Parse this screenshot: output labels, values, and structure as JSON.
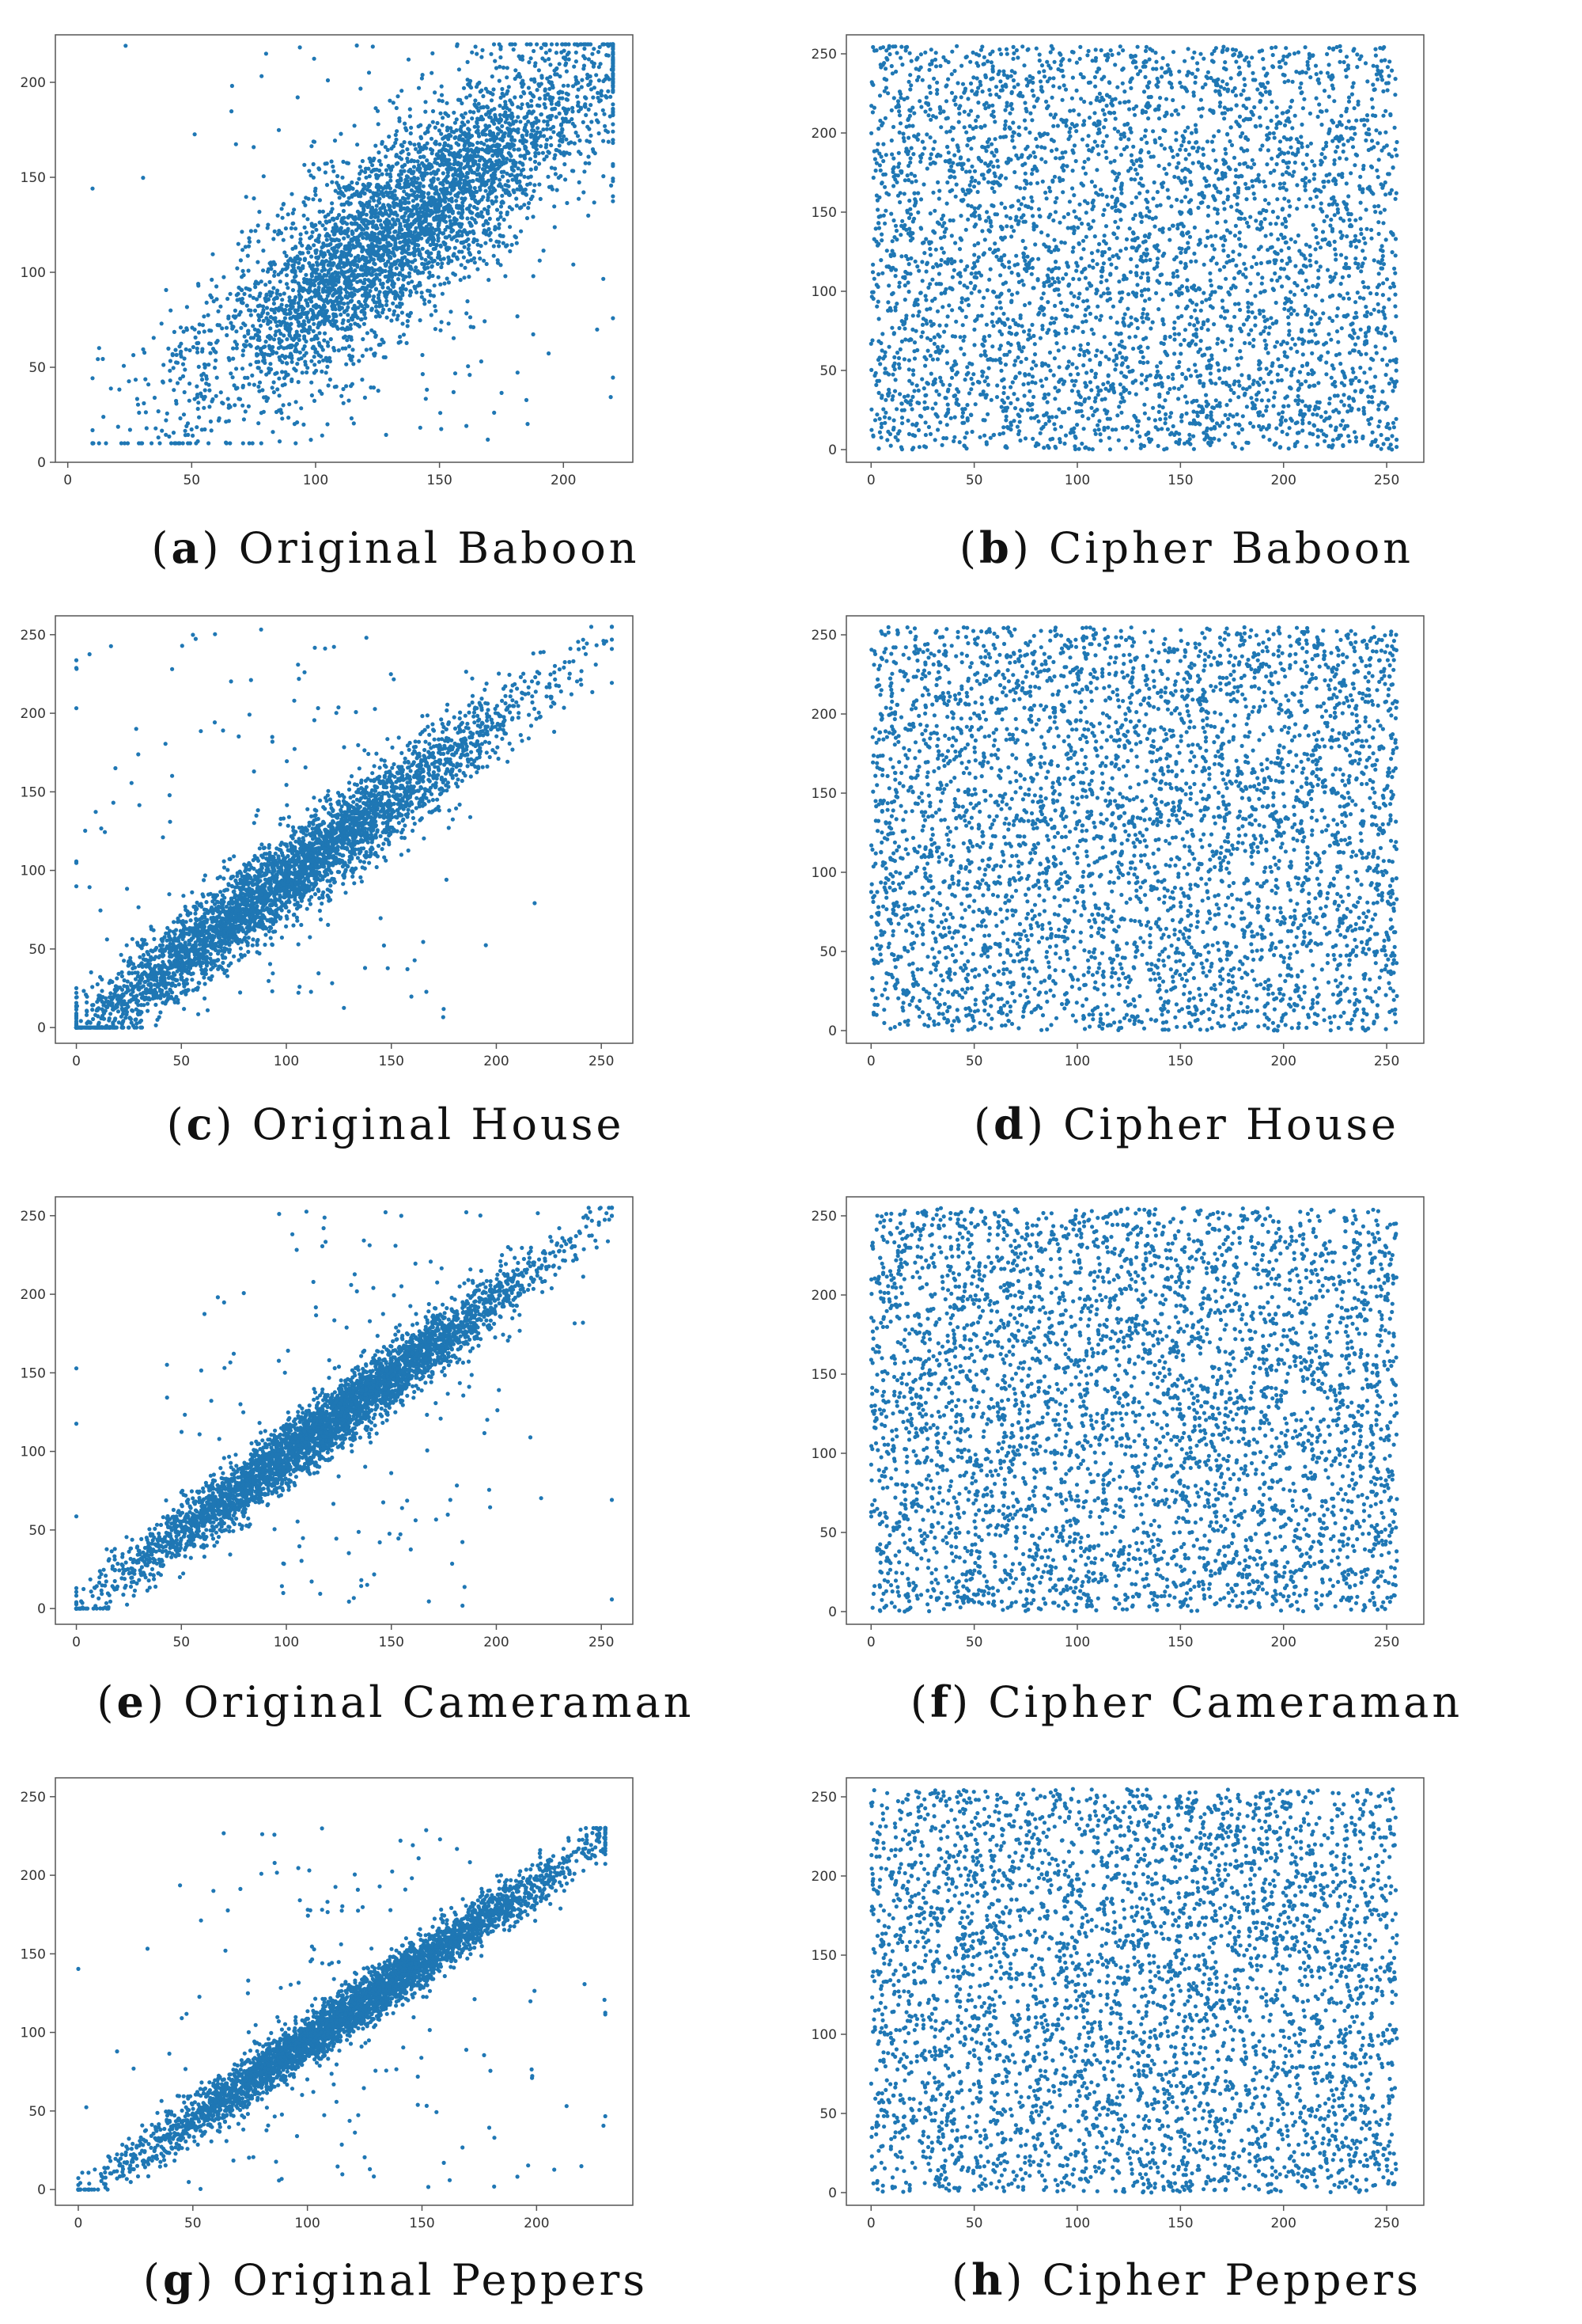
{
  "colors": {
    "points": "#1f77b4",
    "axes": "#555555"
  },
  "chart_data": [
    {
      "type": "scatter",
      "panel_letter": "a",
      "caption": "Original Baboon",
      "xlim": [
        -5,
        228
      ],
      "ylim": [
        0,
        225
      ],
      "xticks": [
        0,
        50,
        100,
        150,
        200
      ],
      "yticks": [
        0,
        50,
        100,
        150,
        200
      ],
      "grid": false,
      "distribution": {
        "kind": "correlated",
        "center": [
          135,
          125
        ],
        "spread": 42,
        "noise": 22,
        "min": 10,
        "max": 220,
        "count": 4200,
        "seed": 11
      }
    },
    {
      "type": "scatter",
      "panel_letter": "b",
      "caption": "Cipher Baboon",
      "xlim": [
        -12,
        268
      ],
      "ylim": [
        -8,
        262
      ],
      "xticks": [
        0,
        50,
        100,
        150,
        200,
        250
      ],
      "yticks": [
        0,
        50,
        100,
        150,
        200,
        250
      ],
      "grid": false,
      "distribution": {
        "kind": "uniform",
        "min": 0,
        "max": 255,
        "count": 4200,
        "seed": 23
      }
    },
    {
      "type": "scatter",
      "panel_letter": "c",
      "caption": "Original House",
      "xlim": [
        -10,
        265
      ],
      "ylim": [
        -10,
        262
      ],
      "xticks": [
        0,
        50,
        100,
        150,
        200,
        250
      ],
      "yticks": [
        0,
        50,
        100,
        150,
        200,
        250
      ],
      "grid": false,
      "distribution": {
        "kind": "correlated",
        "center": [
          95,
          90
        ],
        "spread": 55,
        "noise": 12,
        "min": 0,
        "max": 255,
        "count": 4200,
        "seed": 37
      }
    },
    {
      "type": "scatter",
      "panel_letter": "d",
      "caption": "Cipher House",
      "xlim": [
        -12,
        268
      ],
      "ylim": [
        -8,
        262
      ],
      "xticks": [
        0,
        50,
        100,
        150,
        200,
        250
      ],
      "yticks": [
        0,
        50,
        100,
        150,
        200,
        250
      ],
      "grid": false,
      "distribution": {
        "kind": "uniform",
        "min": 0,
        "max": 255,
        "count": 4200,
        "seed": 41
      }
    },
    {
      "type": "scatter",
      "panel_letter": "e",
      "caption": "Original Cameraman",
      "xlim": [
        -10,
        265
      ],
      "ylim": [
        -10,
        262
      ],
      "xticks": [
        0,
        50,
        100,
        150,
        200,
        250
      ],
      "yticks": [
        0,
        50,
        100,
        150,
        200,
        250
      ],
      "grid": false,
      "distribution": {
        "kind": "correlated",
        "center": [
          120,
          118
        ],
        "spread": 50,
        "noise": 9,
        "min": 0,
        "max": 255,
        "count": 4200,
        "seed": 53
      }
    },
    {
      "type": "scatter",
      "panel_letter": "f",
      "caption": "Cipher Cameraman",
      "xlim": [
        -12,
        268
      ],
      "ylim": [
        -8,
        262
      ],
      "xticks": [
        0,
        50,
        100,
        150,
        200,
        250
      ],
      "yticks": [
        0,
        50,
        100,
        150,
        200,
        250
      ],
      "grid": false,
      "distribution": {
        "kind": "uniform",
        "min": 0,
        "max": 255,
        "count": 4200,
        "seed": 67
      }
    },
    {
      "type": "scatter",
      "panel_letter": "g",
      "caption": "Original Peppers",
      "xlim": [
        -10,
        242
      ],
      "ylim": [
        -10,
        262
      ],
      "xticks": [
        0,
        50,
        100,
        150,
        200
      ],
      "yticks": [
        0,
        50,
        100,
        150,
        200,
        250
      ],
      "grid": false,
      "distribution": {
        "kind": "correlated",
        "center": [
          120,
          115
        ],
        "spread": 50,
        "noise": 7,
        "min": 0,
        "max": 230,
        "count": 4200,
        "seed": 71
      }
    },
    {
      "type": "scatter",
      "panel_letter": "h",
      "caption": "Cipher Peppers",
      "xlim": [
        -12,
        268
      ],
      "ylim": [
        -8,
        262
      ],
      "xticks": [
        0,
        50,
        100,
        150,
        200,
        250
      ],
      "yticks": [
        0,
        50,
        100,
        150,
        200,
        250
      ],
      "grid": false,
      "distribution": {
        "kind": "uniform",
        "min": 0,
        "max": 255,
        "count": 4200,
        "seed": 83
      }
    }
  ]
}
